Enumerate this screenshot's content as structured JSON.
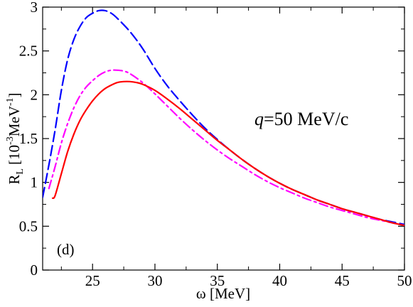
{
  "chart_data": {
    "type": "line",
    "xlabel": "ω [MeV]",
    "ylabel": {
      "main": "R",
      "sub": "L",
      "units_open": " [10",
      "units_exp1": "-3",
      "units_mid": "MeV",
      "units_exp2": "-1",
      "units_close": "]"
    },
    "xlim": [
      21,
      50
    ],
    "ylim": [
      0,
      3
    ],
    "xticks": [
      25,
      30,
      35,
      40,
      45,
      50
    ],
    "yticks": [
      0,
      0.5,
      1,
      1.5,
      2,
      2.5,
      3
    ],
    "ytick_labels": [
      "0",
      "0.5",
      "1",
      "1.5",
      "2",
      "2.5",
      "3"
    ],
    "grid": false,
    "legend": "none",
    "annotation": {
      "q": "q",
      "rest": "=50 MeV/c"
    },
    "panel_label": "(d)",
    "series": [
      {
        "color": "#0000ff",
        "dash": "dashed",
        "x": [
          21.0,
          21.5,
          22,
          22.5,
          23,
          23.5,
          24,
          24.5,
          25,
          25.5,
          26,
          26.5,
          27,
          28,
          29,
          30,
          31,
          32,
          33,
          34,
          35,
          36,
          37,
          38,
          39,
          40,
          41,
          42,
          43,
          44,
          45,
          46,
          47,
          48,
          49,
          50
        ],
        "y": [
          0.83,
          1.2,
          1.6,
          2.05,
          2.4,
          2.63,
          2.78,
          2.88,
          2.93,
          2.96,
          2.96,
          2.93,
          2.87,
          2.72,
          2.53,
          2.3,
          2.1,
          1.93,
          1.77,
          1.62,
          1.49,
          1.37,
          1.26,
          1.16,
          1.07,
          0.99,
          0.92,
          0.86,
          0.8,
          0.75,
          0.7,
          0.66,
          0.62,
          0.58,
          0.55,
          0.52
        ]
      },
      {
        "color": "#ff00ff",
        "dash": "dashdot",
        "x": [
          21.5,
          22,
          22.5,
          23,
          23.5,
          24,
          24.5,
          25,
          25.5,
          26,
          26.5,
          27,
          27.5,
          28,
          29,
          30,
          31,
          32,
          33,
          34,
          35,
          36,
          37,
          38,
          39,
          40,
          41,
          42,
          43,
          44,
          45,
          46,
          47,
          48,
          49,
          50
        ],
        "y": [
          0.93,
          1.18,
          1.45,
          1.67,
          1.85,
          1.99,
          2.09,
          2.16,
          2.22,
          2.26,
          2.28,
          2.28,
          2.27,
          2.24,
          2.14,
          2.01,
          1.87,
          1.73,
          1.6,
          1.48,
          1.37,
          1.27,
          1.18,
          1.09,
          1.01,
          0.94,
          0.88,
          0.82,
          0.77,
          0.72,
          0.68,
          0.64,
          0.6,
          0.57,
          0.54,
          0.51
        ]
      },
      {
        "color": "#ff0000",
        "dash": "solid",
        "x": [
          21.8,
          22,
          22.5,
          23,
          23.5,
          24,
          24.5,
          25,
          25.5,
          26,
          26.5,
          27,
          27.5,
          28,
          28.5,
          29,
          30,
          31,
          32,
          33,
          34,
          35,
          36,
          37,
          38,
          39,
          40,
          41,
          42,
          43,
          44,
          45,
          46,
          47,
          48,
          49,
          50
        ],
        "y": [
          0.82,
          0.85,
          1.1,
          1.35,
          1.55,
          1.71,
          1.83,
          1.93,
          2.01,
          2.07,
          2.11,
          2.14,
          2.15,
          2.15,
          2.14,
          2.12,
          2.05,
          1.95,
          1.84,
          1.72,
          1.6,
          1.48,
          1.37,
          1.26,
          1.16,
          1.07,
          0.99,
          0.92,
          0.86,
          0.8,
          0.75,
          0.7,
          0.66,
          0.62,
          0.58,
          0.54,
          0.51
        ]
      }
    ]
  }
}
